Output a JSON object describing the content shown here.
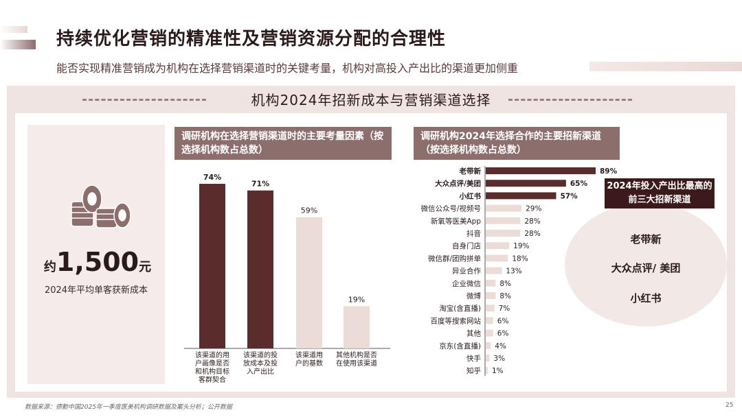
{
  "header": {
    "title": "持续优化营销的精准性及营销资源分配的合理性",
    "subtitle": "能否实现精准营销成为机构在选择营销渠道时的关键考量，机构对高投入产出比的渠道更加侧重"
  },
  "section_title": "机构2024年招新成本与营销渠道选择",
  "cost_card": {
    "prefix": "约",
    "value": "1,500",
    "suffix": "元",
    "label": "2024年平均单客获新成本"
  },
  "middle_header": "调研机构在选择营销渠道时的主要考量因素（按选择机构数占总数）",
  "right_header": "调研机构2024年选择合作的主要招新渠道（按选择机构数占总数）",
  "top3": {
    "title": "2024年投入产出比最高的前三大招新渠道",
    "items": [
      "老带新",
      "大众点评/ 美团",
      "小红书"
    ]
  },
  "footer": {
    "source": "数据来源：德勤中国2025年一季度医美机构调研数据及案头分析；公开数据",
    "page": "25"
  },
  "colors": {
    "dark": "#5a2c2c",
    "light": "#ecdcd8",
    "accent": "#8c6e6c"
  },
  "chart_data": [
    {
      "type": "bar",
      "categories": [
        "该渠道的用户画像是否和机构目标客群契合",
        "该渠道的投放成本及投入产出比",
        "该渠道用户的基数",
        "其他机构是否在使用该渠道"
      ],
      "category_lines": [
        [
          "该渠道的用",
          "户画像是否",
          "和机构目标",
          "客群契合"
        ],
        [
          "该渠道的投",
          "放成本及投",
          "入产出比"
        ],
        [
          "该渠道用",
          "户的基数"
        ],
        [
          "其他机构是否",
          "在使用该渠道"
        ]
      ],
      "values": [
        74,
        71,
        59,
        19
      ],
      "value_labels": [
        "74%",
        "71%",
        "59%",
        "19%"
      ],
      "highlight": [
        true,
        true,
        false,
        false
      ],
      "ylim": [
        0,
        100
      ]
    },
    {
      "type": "bar",
      "orientation": "horizontal",
      "categories": [
        "老带新",
        "大众点评/美团",
        "小红书",
        "微信公众号/视频号",
        "新氧等医美App",
        "抖音",
        "自身门店",
        "微信群/团购拼单",
        "异业合作",
        "企业微信",
        "微博",
        "淘宝(含直播)",
        "百度等搜索网站",
        "其他",
        "京东(含直播)",
        "快手",
        "知乎"
      ],
      "values": [
        89,
        65,
        57,
        29,
        28,
        28,
        19,
        18,
        13,
        8,
        8,
        7,
        6,
        6,
        4,
        3,
        1
      ],
      "value_labels": [
        "89%",
        "65%",
        "57%",
        "29%",
        "28%",
        "28%",
        "19%",
        "18%",
        "13%",
        "8%",
        "8%",
        "7%",
        "6%",
        "6%",
        "4%",
        "3%",
        "1%"
      ],
      "highlight": [
        true,
        true,
        true,
        false,
        false,
        false,
        false,
        false,
        false,
        false,
        false,
        false,
        false,
        false,
        false,
        false,
        false
      ],
      "xlim": [
        0,
        100
      ]
    }
  ]
}
